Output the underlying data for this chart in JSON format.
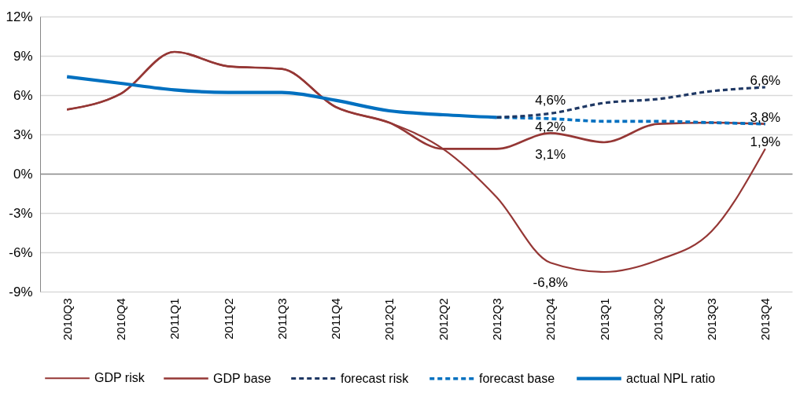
{
  "chart_data": {
    "type": "line",
    "categories": [
      "2010Q3",
      "2010Q4",
      "2011Q1",
      "2011Q2",
      "2011Q3",
      "2011Q4",
      "2012Q1",
      "2012Q2",
      "2012Q3",
      "2012Q4",
      "2013Q1",
      "2013Q2",
      "2013Q3",
      "2013Q4"
    ],
    "ylim": [
      -9,
      12
    ],
    "yticks": [
      {
        "value": -9,
        "label": "-9%"
      },
      {
        "value": -6,
        "label": "-6%"
      },
      {
        "value": -3,
        "label": "-3%"
      },
      {
        "value": 0,
        "label": "0%"
      },
      {
        "value": 3,
        "label": "3%"
      },
      {
        "value": 6,
        "label": "6%"
      },
      {
        "value": 9,
        "label": "9%"
      },
      {
        "value": 12,
        "label": "12%"
      }
    ],
    "grid": "y",
    "legend": "bottom",
    "series": [
      {
        "name": "GDP risk",
        "color": "#953735",
        "values": [
          4.9,
          6.1,
          9.3,
          8.2,
          8.0,
          5.1,
          3.9,
          1.9,
          -1.8,
          -6.8,
          -7.5,
          -6.6,
          -4.4,
          1.9
        ],
        "value_labels": [
          null,
          null,
          null,
          null,
          null,
          null,
          null,
          null,
          null,
          "-6,8%",
          null,
          null,
          null,
          "1,9%"
        ]
      },
      {
        "name": "GDP base",
        "color": "#953735",
        "values": [
          4.9,
          6.1,
          9.3,
          8.2,
          8.0,
          5.1,
          3.9,
          1.9,
          1.9,
          3.1,
          2.4,
          3.8,
          3.9,
          3.8
        ],
        "value_labels": [
          null,
          null,
          null,
          null,
          null,
          null,
          null,
          null,
          null,
          "3,1%",
          null,
          null,
          null,
          null
        ]
      },
      {
        "name": "forecast risk",
        "color": "#1f3864",
        "line_style": "dashed",
        "values": [
          null,
          null,
          null,
          null,
          null,
          null,
          null,
          null,
          4.3,
          4.6,
          5.4,
          5.7,
          6.3,
          6.6
        ],
        "value_labels": [
          null,
          null,
          null,
          null,
          null,
          null,
          null,
          null,
          null,
          "4,6%",
          null,
          null,
          null,
          "6,6%"
        ]
      },
      {
        "name": "forecast base",
        "color": "#0070c0",
        "line_style": "dashed",
        "values": [
          null,
          null,
          null,
          null,
          null,
          null,
          null,
          null,
          4.3,
          4.2,
          4.0,
          4.0,
          3.9,
          3.8
        ],
        "value_labels": [
          null,
          null,
          null,
          null,
          null,
          null,
          null,
          null,
          null,
          "4,2%",
          null,
          null,
          null,
          "3,8%"
        ]
      },
      {
        "name": "actual NPL ratio",
        "color": "#0070c0",
        "values": [
          7.4,
          6.9,
          6.4,
          6.2,
          6.2,
          5.6,
          4.8,
          4.5,
          4.3,
          null,
          null,
          null,
          null,
          null
        ]
      }
    ]
  }
}
